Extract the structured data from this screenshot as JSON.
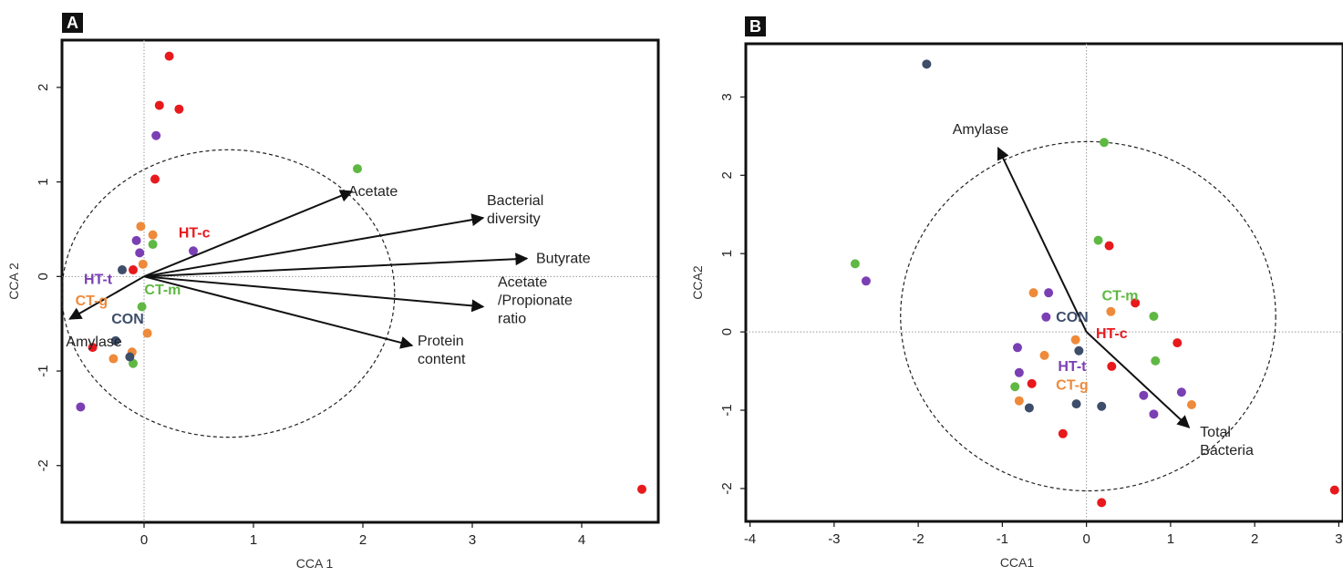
{
  "colors": {
    "HT-c": "#e8191c",
    "CT-m": "#5fb843",
    "CON": "#3d4d6a",
    "HT-t": "#7b3fb4",
    "CT-g": "#ee8a3a"
  },
  "chart_data": [
    {
      "type": "scatter",
      "panel_label": "A",
      "xlabel": "CCA 1",
      "ylabel": "CCA 2",
      "xlim": [
        -0.75,
        4.7
      ],
      "ylim": [
        -2.6,
        2.5
      ],
      "xticks": [
        {
          "v": 0,
          "label": "0"
        },
        {
          "v": 1,
          "label": "1"
        },
        {
          "v": 2,
          "label": "2"
        },
        {
          "v": 3,
          "label": "3"
        },
        {
          "v": 4,
          "label": "4"
        }
      ],
      "yticks": [
        {
          "v": -2,
          "label": "-2"
        },
        {
          "v": -1,
          "label": "-1"
        },
        {
          "v": 0,
          "label": "0"
        },
        {
          "v": 1,
          "label": "1"
        },
        {
          "v": 2,
          "label": "2"
        }
      ],
      "circle": {
        "cx": 0.77,
        "cy": -0.18,
        "r": 1.52,
        "style": "dashed"
      },
      "vectors": [
        {
          "name": "Acetate",
          "x": 1.9,
          "y": 0.9,
          "label_lines": [
            "Acetate"
          ]
        },
        {
          "name": "Bacterial diversity",
          "x": 3.1,
          "y": 0.62,
          "label_lines": [
            "Bacterial",
            "diversity"
          ]
        },
        {
          "name": "Butyrate",
          "x": 3.5,
          "y": 0.19,
          "label_lines": [
            "Butyrate"
          ]
        },
        {
          "name": "Acetate/Propionate ratio",
          "x": 3.1,
          "y": -0.32,
          "label_lines": [
            "Acetate",
            "/Propionate",
            "ratio"
          ]
        },
        {
          "name": "Protein content",
          "x": 2.45,
          "y": -0.73,
          "label_lines": [
            "Protein",
            "content"
          ]
        },
        {
          "name": "Amylase",
          "x": -0.68,
          "y": -0.45,
          "label_lines": [
            "Amylase"
          ]
        }
      ],
      "groups": [
        {
          "name": "HT-c",
          "label": "HT-c",
          "label_pos": [
            0.46,
            0.47
          ]
        },
        {
          "name": "CT-m",
          "label": "CT-m",
          "label_pos": [
            0.17,
            -0.13
          ]
        },
        {
          "name": "HT-t",
          "label": "HT-t",
          "label_pos": [
            -0.42,
            -0.02
          ]
        },
        {
          "name": "CT-g",
          "label": "CT-g",
          "label_pos": [
            -0.48,
            -0.25
          ]
        },
        {
          "name": "CON",
          "label": "CON",
          "label_pos": [
            -0.15,
            -0.44
          ]
        }
      ],
      "points": [
        {
          "g": "HT-c",
          "x": 0.23,
          "y": 2.33
        },
        {
          "g": "HT-c",
          "x": 0.14,
          "y": 1.81
        },
        {
          "g": "HT-c",
          "x": 0.32,
          "y": 1.77
        },
        {
          "g": "HT-c",
          "x": 0.1,
          "y": 1.03
        },
        {
          "g": "HT-c",
          "x": -0.1,
          "y": 0.07
        },
        {
          "g": "HT-c",
          "x": -0.47,
          "y": -0.75
        },
        {
          "g": "HT-c",
          "x": 4.55,
          "y": -2.25
        },
        {
          "g": "CT-m",
          "x": 1.95,
          "y": 1.14
        },
        {
          "g": "CT-m",
          "x": 0.08,
          "y": 0.34
        },
        {
          "g": "CT-m",
          "x": -0.02,
          "y": -0.32
        },
        {
          "g": "CT-m",
          "x": -0.1,
          "y": -0.92
        },
        {
          "g": "HT-t",
          "x": 0.11,
          "y": 1.49
        },
        {
          "g": "HT-t",
          "x": -0.07,
          "y": 0.38
        },
        {
          "g": "HT-t",
          "x": -0.04,
          "y": 0.25
        },
        {
          "g": "HT-t",
          "x": 0.45,
          "y": 0.27
        },
        {
          "g": "HT-t",
          "x": -0.58,
          "y": -1.38
        },
        {
          "g": "CT-g",
          "x": -0.03,
          "y": 0.53
        },
        {
          "g": "CT-g",
          "x": 0.08,
          "y": 0.44
        },
        {
          "g": "CT-g",
          "x": -0.01,
          "y": 0.13
        },
        {
          "g": "CT-g",
          "x": 0.03,
          "y": -0.6
        },
        {
          "g": "CT-g",
          "x": -0.28,
          "y": -0.87
        },
        {
          "g": "CT-g",
          "x": -0.11,
          "y": -0.8
        },
        {
          "g": "CON",
          "x": -0.2,
          "y": 0.07
        },
        {
          "g": "CON",
          "x": -0.26,
          "y": -0.68
        },
        {
          "g": "CON",
          "x": -0.13,
          "y": -0.85
        }
      ]
    },
    {
      "type": "scatter",
      "panel_label": "B",
      "xlabel": "CCA1",
      "ylabel": "CCA2",
      "xlim": [
        -4.05,
        3.05
      ],
      "ylim": [
        -2.42,
        3.68
      ],
      "xticks": [
        {
          "v": -4,
          "label": "-4"
        },
        {
          "v": -3,
          "label": "-3"
        },
        {
          "v": -2,
          "label": "-2"
        },
        {
          "v": -1,
          "label": "-1"
        },
        {
          "v": 0,
          "label": "0"
        },
        {
          "v": 1,
          "label": "1"
        },
        {
          "v": 2,
          "label": "2"
        },
        {
          "v": 3,
          "label": "3"
        }
      ],
      "yticks": [
        {
          "v": -2,
          "label": "-2"
        },
        {
          "v": -1,
          "label": "-1"
        },
        {
          "v": 0,
          "label": "0"
        },
        {
          "v": 1,
          "label": "1"
        },
        {
          "v": 2,
          "label": "2"
        },
        {
          "v": 3,
          "label": "3"
        }
      ],
      "circle": {
        "cx": 0.02,
        "cy": 0.2,
        "r": 2.23,
        "style": "dashed"
      },
      "vectors": [
        {
          "name": "Amylase",
          "x": -1.05,
          "y": 2.35,
          "label_lines": [
            "Amylase"
          ]
        },
        {
          "name": "Total Bacteria",
          "x": 1.22,
          "y": -1.22,
          "label_lines": [
            "Total",
            "Bacteria"
          ]
        }
      ],
      "groups": [
        {
          "name": "CT-m",
          "label": "CT-m",
          "label_pos": [
            0.4,
            0.47
          ]
        },
        {
          "name": "CON",
          "label": "CON",
          "label_pos": [
            -0.17,
            0.2
          ]
        },
        {
          "name": "HT-c",
          "label": "HT-c",
          "label_pos": [
            0.3,
            -0.01
          ]
        },
        {
          "name": "HT-t",
          "label": "HT-t",
          "label_pos": [
            -0.17,
            -0.43
          ]
        },
        {
          "name": "CT-g",
          "label": "CT-g",
          "label_pos": [
            -0.17,
            -0.67
          ]
        }
      ],
      "points": [
        {
          "g": "CON",
          "x": -1.9,
          "y": 3.42
        },
        {
          "g": "CON",
          "x": -0.09,
          "y": -0.24
        },
        {
          "g": "CON",
          "x": -0.68,
          "y": -0.97
        },
        {
          "g": "CON",
          "x": -0.12,
          "y": -0.92
        },
        {
          "g": "CON",
          "x": 0.18,
          "y": -0.95
        },
        {
          "g": "CT-m",
          "x": 0.21,
          "y": 2.42
        },
        {
          "g": "CT-m",
          "x": 0.14,
          "y": 1.17
        },
        {
          "g": "CT-m",
          "x": -2.75,
          "y": 0.87
        },
        {
          "g": "CT-m",
          "x": 0.8,
          "y": 0.2
        },
        {
          "g": "CT-m",
          "x": 0.82,
          "y": -0.37
        },
        {
          "g": "CT-m",
          "x": -0.85,
          "y": -0.7
        },
        {
          "g": "HT-t",
          "x": -2.62,
          "y": 0.65
        },
        {
          "g": "HT-t",
          "x": -0.45,
          "y": 0.5
        },
        {
          "g": "HT-t",
          "x": -0.48,
          "y": 0.19
        },
        {
          "g": "HT-t",
          "x": -0.82,
          "y": -0.2
        },
        {
          "g": "HT-t",
          "x": -0.8,
          "y": -0.52
        },
        {
          "g": "HT-t",
          "x": 0.68,
          "y": -0.81
        },
        {
          "g": "HT-t",
          "x": 1.13,
          "y": -0.77
        },
        {
          "g": "HT-t",
          "x": 0.8,
          "y": -1.05
        },
        {
          "g": "CT-g",
          "x": -0.63,
          "y": 0.5
        },
        {
          "g": "CT-g",
          "x": 0.29,
          "y": 0.26
        },
        {
          "g": "CT-g",
          "x": -0.13,
          "y": -0.1
        },
        {
          "g": "CT-g",
          "x": -0.5,
          "y": -0.3
        },
        {
          "g": "CT-g",
          "x": -0.8,
          "y": -0.88
        },
        {
          "g": "CT-g",
          "x": 1.25,
          "y": -0.93
        },
        {
          "g": "HT-c",
          "x": 0.27,
          "y": 1.1
        },
        {
          "g": "HT-c",
          "x": 0.58,
          "y": 0.37
        },
        {
          "g": "HT-c",
          "x": 1.08,
          "y": -0.14
        },
        {
          "g": "HT-c",
          "x": 0.3,
          "y": -0.44
        },
        {
          "g": "HT-c",
          "x": -0.65,
          "y": -0.66
        },
        {
          "g": "HT-c",
          "x": -0.28,
          "y": -1.3
        },
        {
          "g": "HT-c",
          "x": 0.18,
          "y": -2.18
        },
        {
          "g": "HT-c",
          "x": 2.95,
          "y": -2.02
        }
      ]
    }
  ]
}
